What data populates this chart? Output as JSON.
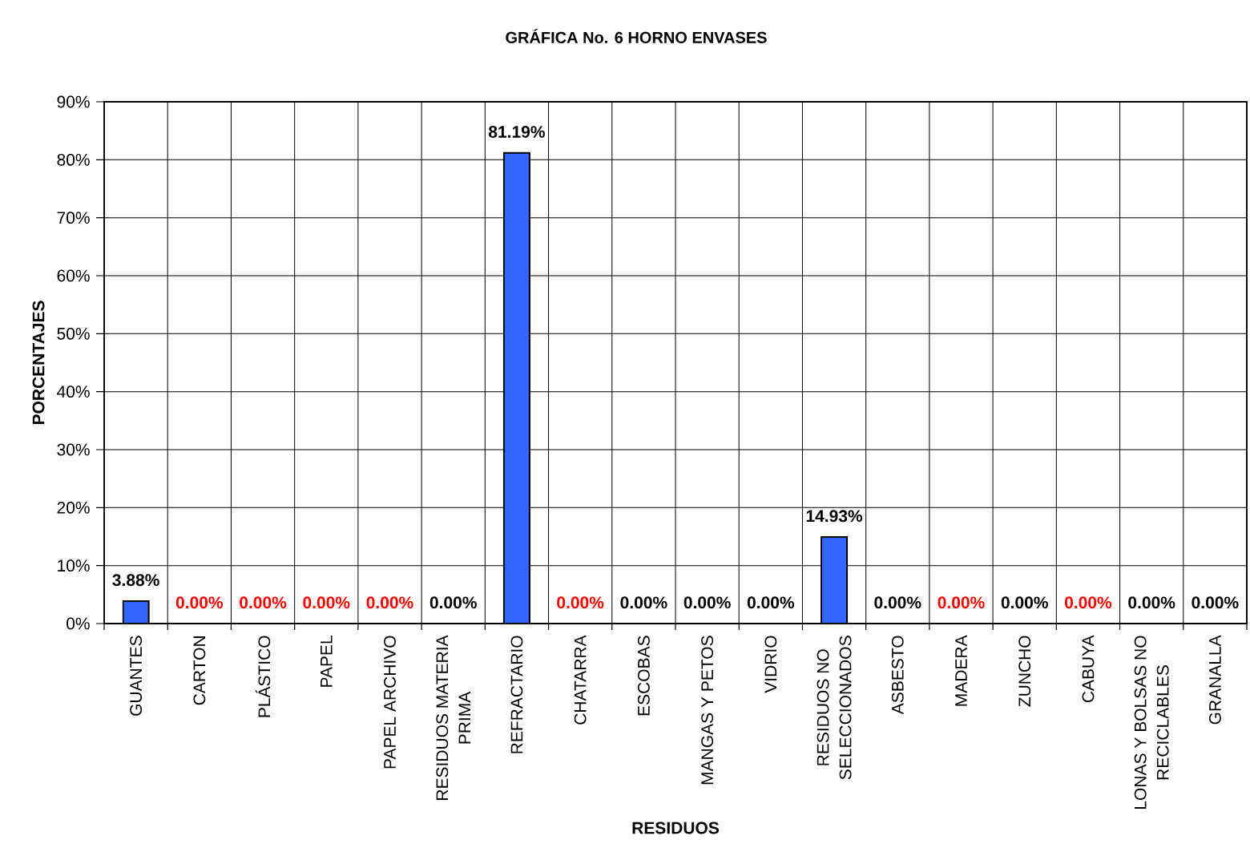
{
  "chart_data": {
    "type": "bar",
    "title": "GRÁFICA No. 6 HORNO ENVASES",
    "xlabel": "RESIDUOS",
    "ylabel": "PORCENTAJES",
    "categories": [
      "GUANTES",
      "CARTON",
      "PLÁSTICO",
      "PAPEL",
      "PAPEL ARCHIVO",
      "RESIDUOS MATERIA PRIMA",
      "REFRACTARIO",
      "CHATARRA",
      "ESCOBAS",
      "MANGAS Y PETOS",
      "VIDRIO",
      "RESIDUOS NO SELECCIONADOS",
      "ASBESTO",
      "MADERA",
      "ZUNCHO",
      "CABUYA",
      "LONAS Y BOLSAS NO RECICLABLES",
      "GRANALLA"
    ],
    "stacked": true,
    "series": [
      {
        "color": "#3366ff",
        "values": [
          3.88,
          null,
          null,
          null,
          null,
          0,
          81.19,
          null,
          0,
          0,
          0,
          14.93,
          0,
          null,
          0,
          null,
          0,
          0
        ],
        "value_labels": [
          "3.88%",
          null,
          null,
          null,
          null,
          "0.00%",
          "81.19%",
          null,
          "0.00%",
          "0.00%",
          "0.00%",
          "14.93%",
          "0.00%",
          null,
          "0.00%",
          null,
          "0.00%",
          "0.00%"
        ]
      },
      {
        "color": "#ff0000",
        "values": [
          null,
          0,
          0,
          0,
          0,
          null,
          null,
          0,
          null,
          null,
          null,
          null,
          null,
          0,
          null,
          0,
          null,
          null
        ],
        "value_labels": [
          null,
          "0.00%",
          "0.00%",
          "0.00%",
          "0.00%",
          null,
          null,
          "0.00%",
          null,
          null,
          null,
          null,
          null,
          "0.00%",
          null,
          "0.00%",
          null,
          null
        ]
      }
    ],
    "ylim": [
      0,
      90
    ],
    "yticks": [
      {
        "value": 0,
        "label": "0%"
      },
      {
        "value": 10,
        "label": "10%"
      },
      {
        "value": 20,
        "label": "20%"
      },
      {
        "value": 30,
        "label": "30%"
      },
      {
        "value": 40,
        "label": "40%"
      },
      {
        "value": 50,
        "label": "50%"
      },
      {
        "value": 60,
        "label": "60%"
      },
      {
        "value": 70,
        "label": "70%"
      },
      {
        "value": 80,
        "label": "80%"
      },
      {
        "value": 90,
        "label": "90%"
      }
    ],
    "grid": true
  }
}
